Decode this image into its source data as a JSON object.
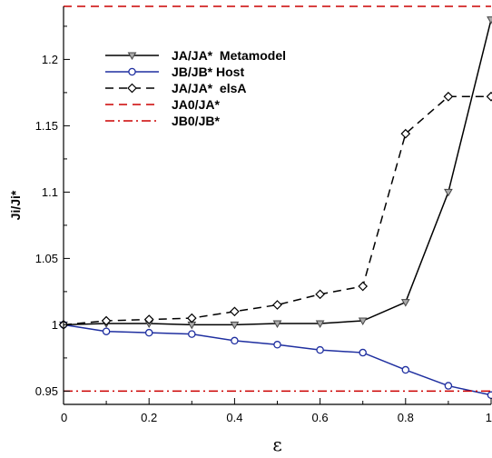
{
  "chart_data": {
    "type": "line",
    "xlabel": "ε",
    "ylabel": "Ji/Ji*",
    "xlim": [
      0,
      1
    ],
    "ylim": [
      0.94,
      1.24
    ],
    "grid": false,
    "legend_position": "top-left",
    "x_ticks": [
      {
        "value": 0,
        "label": "0"
      },
      {
        "value": 0.2,
        "label": "0.2"
      },
      {
        "value": 0.4,
        "label": "0.4"
      },
      {
        "value": 0.6,
        "label": "0.6"
      },
      {
        "value": 0.8,
        "label": "0.8"
      },
      {
        "value": 1,
        "label": "1"
      }
    ],
    "y_ticks": [
      {
        "value": 0.95,
        "label": "0.95"
      },
      {
        "value": 1.0,
        "label": "1"
      },
      {
        "value": 1.05,
        "label": "1.05"
      },
      {
        "value": 1.1,
        "label": "1.1"
      },
      {
        "value": 1.15,
        "label": "1.15"
      },
      {
        "value": 1.2,
        "label": "1.2"
      }
    ],
    "series": [
      {
        "name": "JA/JA*  Metamodel",
        "color": "#000000",
        "dash": "solid",
        "marker": "triangle-down",
        "x": [
          0,
          0.1,
          0.2,
          0.3,
          0.4,
          0.5,
          0.6,
          0.7,
          0.8,
          0.9,
          1.0
        ],
        "y": [
          1.0,
          1.001,
          1.001,
          1.0,
          1.0,
          1.001,
          1.001,
          1.003,
          1.017,
          1.1,
          1.23
        ]
      },
      {
        "name": "JB/JB* Host",
        "color": "#1f2fa0",
        "dash": "solid",
        "marker": "circle",
        "x": [
          0,
          0.1,
          0.2,
          0.3,
          0.4,
          0.5,
          0.6,
          0.7,
          0.8,
          0.9,
          1.0
        ],
        "y": [
          1.0,
          0.995,
          0.994,
          0.993,
          0.988,
          0.985,
          0.981,
          0.979,
          0.966,
          0.954,
          0.947
        ]
      },
      {
        "name": "JA/JA*  elsA",
        "color": "#000000",
        "dash": "dashed",
        "marker": "diamond",
        "x": [
          0,
          0.1,
          0.2,
          0.3,
          0.4,
          0.5,
          0.6,
          0.7,
          0.8,
          0.9,
          1.0
        ],
        "y": [
          1.0,
          1.003,
          1.004,
          1.005,
          1.01,
          1.015,
          1.023,
          1.029,
          1.144,
          1.172,
          1.172
        ]
      },
      {
        "name": "JA0/JA*",
        "color": "#cc0000",
        "dash": "dashed",
        "marker": "none",
        "x": [
          0,
          1.0
        ],
        "y": [
          1.24,
          1.24
        ]
      },
      {
        "name": "JB0/JB*",
        "color": "#cc0000",
        "dash": "dashdot",
        "marker": "none",
        "x": [
          0,
          1.0
        ],
        "y": [
          0.95,
          0.95
        ]
      }
    ]
  }
}
